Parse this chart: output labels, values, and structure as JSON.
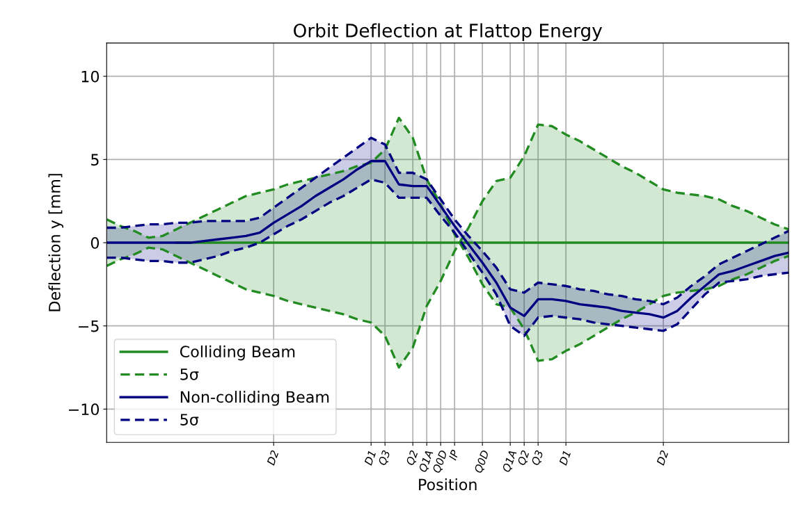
{
  "chart_data": {
    "type": "line",
    "title": "Orbit Deflection at Flattop Energy",
    "xlabel": "Position",
    "ylabel": "Deflection y [mm]",
    "categories": [
      null,
      null,
      null,
      null,
      null,
      null,
      null,
      null,
      null,
      null,
      null,
      null,
      "D2",
      null,
      null,
      null,
      null,
      null,
      null,
      "D1",
      "Q3",
      null,
      "Q2",
      "Q1A",
      "Q0D",
      "IP",
      null,
      "Q0D",
      null,
      "Q1A",
      "Q2",
      "Q3",
      null,
      "D1",
      null,
      null,
      null,
      null,
      null,
      null,
      "D2",
      null,
      null,
      null,
      null,
      null,
      null,
      null,
      null,
      null
    ],
    "ylim": [
      -12,
      12
    ],
    "yticks": [
      {
        "value": -10,
        "label": "−10"
      },
      {
        "value": -5,
        "label": "−5"
      },
      0,
      5,
      10
    ],
    "grid": true,
    "legend": "bottom left",
    "series": [
      {
        "name": "Colliding Beam",
        "color": "#228b22",
        "line_style": "solid",
        "values": [
          null,
          null,
          null,
          null,
          null,
          0,
          0,
          0,
          0,
          0,
          0,
          0,
          0,
          0,
          0,
          0,
          0,
          0,
          0,
          0,
          0,
          0,
          0,
          0,
          0,
          0,
          0,
          0,
          0,
          0,
          0,
          0,
          0,
          0,
          0,
          0,
          0,
          0,
          0,
          0,
          0,
          0,
          0,
          0,
          0,
          0,
          0,
          0,
          0,
          0
        ],
        "upper": [
          1.4,
          1.0,
          0.7,
          0.3,
          0.4,
          0.8,
          1.2,
          1.6,
          2.0,
          2.4,
          2.8,
          3.0,
          3.2,
          3.5,
          3.7,
          3.9,
          4.1,
          4.3,
          4.6,
          4.8,
          5.6,
          7.5,
          6.3,
          3.8,
          2.3,
          0.5,
          -0.9,
          -2.5,
          -3.7,
          -3.9,
          -5.2,
          -7.1,
          -7.0,
          -6.5,
          -6.1,
          -5.6,
          -5.1,
          -4.6,
          -4.2,
          -3.7,
          -3.2,
          -3.0,
          -2.9,
          -2.8,
          -2.6,
          -2.2,
          -1.9,
          -1.5,
          -1.1,
          -0.8
        ],
        "lower": [
          -1.4,
          -1.0,
          -0.7,
          -0.3,
          -0.4,
          -0.8,
          -1.2,
          -1.6,
          -2.0,
          -2.4,
          -2.8,
          -3.0,
          -3.2,
          -3.5,
          -3.7,
          -3.9,
          -4.1,
          -4.3,
          -4.6,
          -4.8,
          -5.6,
          -7.5,
          -6.3,
          -3.8,
          -2.3,
          -0.5,
          0.9,
          2.5,
          3.7,
          3.9,
          5.2,
          7.1,
          7.0,
          6.5,
          6.1,
          5.6,
          5.1,
          4.6,
          4.2,
          3.7,
          3.2,
          3.0,
          2.9,
          2.8,
          2.6,
          2.2,
          1.9,
          1.5,
          1.1,
          0.8
        ]
      },
      {
        "name": "5σ",
        "color": "#228b22",
        "line_style": "dashed",
        "values": [
          1.4,
          1.0,
          0.7,
          0.3,
          0.4,
          0.8,
          1.2,
          1.6,
          2.0,
          2.4,
          2.8,
          3.0,
          3.2,
          3.5,
          3.7,
          3.9,
          4.1,
          4.3,
          4.6,
          4.8,
          5.6,
          7.5,
          6.3,
          3.8,
          2.3,
          0.5,
          -0.9,
          -2.5,
          -3.7,
          -3.9,
          -5.2,
          -7.1,
          -7.0,
          -6.5,
          -6.1,
          -5.6,
          -5.1,
          -4.6,
          -4.2,
          -3.7,
          -3.2,
          -3.0,
          -2.9,
          -2.8,
          -2.6,
          -2.2,
          -1.9,
          -1.5,
          -1.1,
          -0.8
        ]
      },
      {
        "color": "#228b22",
        "line_style": "dashed",
        "values": [
          -1.4,
          -1.0,
          -0.7,
          -0.3,
          -0.4,
          -0.8,
          -1.2,
          -1.6,
          -2.0,
          -2.4,
          -2.8,
          -3.0,
          -3.2,
          -3.5,
          -3.7,
          -3.9,
          -4.1,
          -4.3,
          -4.6,
          -4.8,
          -5.6,
          -7.5,
          -6.3,
          -3.8,
          -2.3,
          -0.5,
          0.9,
          2.5,
          3.7,
          3.9,
          5.2,
          7.1,
          7.0,
          6.5,
          6.1,
          5.6,
          5.1,
          4.6,
          4.2,
          3.7,
          3.2,
          3.0,
          2.9,
          2.8,
          2.6,
          2.2,
          1.9,
          1.5,
          1.1,
          0.8
        ]
      },
      {
        "name": "Non-colliding Beam",
        "color": "#000080",
        "line_style": "solid",
        "values": [
          0,
          0,
          0,
          0,
          0,
          0,
          0,
          0.1,
          0.2,
          0.3,
          0.4,
          0.6,
          1.2,
          1.7,
          2.2,
          2.8,
          3.3,
          3.8,
          4.4,
          4.9,
          4.9,
          3.5,
          3.4,
          3.4,
          2.2,
          1.0,
          -0.1,
          -1.2,
          -2.4,
          -3.9,
          -4.4,
          -3.4,
          -3.4,
          -3.5,
          -3.7,
          -3.8,
          -3.9,
          -4.1,
          -4.2,
          -4.3,
          -4.5,
          -4.1,
          -3.3,
          -2.6,
          -1.9,
          -1.7,
          -1.4,
          -1.1,
          -0.8,
          -0.6
        ],
        "upper": [
          0.9,
          0.9,
          1.0,
          1.1,
          1.1,
          1.2,
          1.2,
          1.3,
          1.3,
          1.3,
          1.3,
          1.5,
          2.1,
          2.7,
          3.3,
          3.9,
          4.5,
          5.1,
          5.7,
          6.3,
          5.9,
          4.2,
          4.2,
          3.8,
          2.6,
          1.4,
          0.4,
          -0.5,
          -1.5,
          -2.8,
          -3.0,
          -2.4,
          -2.5,
          -2.6,
          -2.8,
          -2.9,
          -3.1,
          -3.2,
          -3.4,
          -3.5,
          -3.7,
          -3.3,
          -2.6,
          -2.0,
          -1.3,
          -0.9,
          -0.5,
          -0.1,
          0.3,
          0.7
        ],
        "lower": [
          -0.9,
          -0.9,
          -1.0,
          -1.1,
          -1.1,
          -1.2,
          -1.2,
          -1.0,
          -0.8,
          -0.5,
          -0.3,
          0.0,
          0.5,
          1.0,
          1.4,
          1.9,
          2.4,
          2.8,
          3.3,
          3.8,
          3.6,
          2.7,
          2.7,
          2.7,
          1.6,
          0.6,
          -0.6,
          -1.8,
          -3.1,
          -5.0,
          -5.6,
          -4.5,
          -4.4,
          -4.5,
          -4.6,
          -4.8,
          -4.9,
          -5.0,
          -5.1,
          -5.2,
          -5.3,
          -4.9,
          -4.0,
          -3.1,
          -2.4,
          -2.3,
          -2.2,
          -2.0,
          -1.9,
          -1.8
        ]
      },
      {
        "name": "5σ",
        "color": "#000080",
        "line_style": "dashed",
        "values": [
          0.9,
          0.9,
          1.0,
          1.1,
          1.1,
          1.2,
          1.2,
          1.3,
          1.3,
          1.3,
          1.3,
          1.5,
          2.1,
          2.7,
          3.3,
          3.9,
          4.5,
          5.1,
          5.7,
          6.3,
          5.9,
          4.2,
          4.2,
          3.8,
          2.6,
          1.4,
          0.4,
          -0.5,
          -1.5,
          -2.8,
          -3.0,
          -2.4,
          -2.5,
          -2.6,
          -2.8,
          -2.9,
          -3.1,
          -3.2,
          -3.4,
          -3.5,
          -3.7,
          -3.3,
          -2.6,
          -2.0,
          -1.3,
          -0.9,
          -0.5,
          -0.1,
          0.3,
          0.7
        ]
      },
      {
        "color": "#000080",
        "line_style": "dashed",
        "values": [
          -0.9,
          -0.9,
          -1.0,
          -1.1,
          -1.1,
          -1.2,
          -1.2,
          -1.0,
          -0.8,
          -0.5,
          -0.3,
          0.0,
          0.5,
          1.0,
          1.4,
          1.9,
          2.4,
          2.8,
          3.3,
          3.8,
          3.6,
          2.7,
          2.7,
          2.7,
          1.6,
          0.6,
          -0.6,
          -1.8,
          -3.1,
          -5.0,
          -5.6,
          -4.5,
          -4.4,
          -4.5,
          -4.6,
          -4.8,
          -4.9,
          -5.0,
          -5.1,
          -5.2,
          -5.3,
          -4.9,
          -4.0,
          -3.1,
          -2.4,
          -2.3,
          -2.2,
          -2.0,
          -1.9,
          -1.8
        ]
      }
    ]
  }
}
